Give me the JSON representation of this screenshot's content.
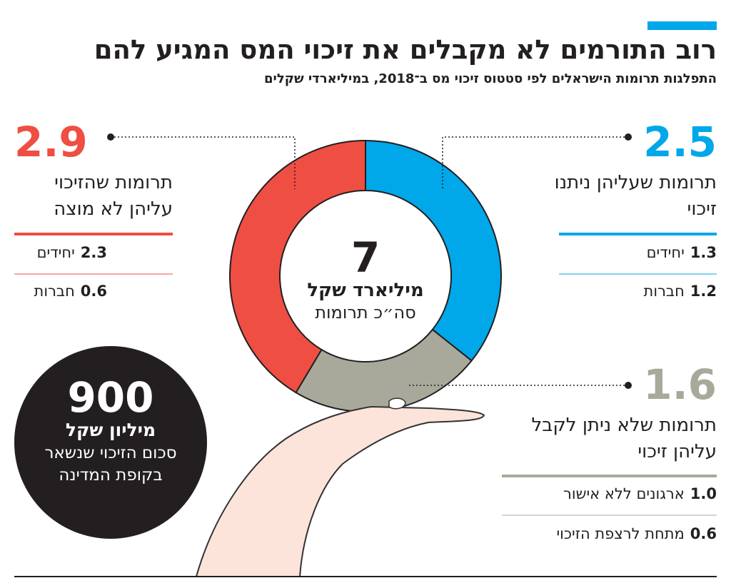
{
  "header": {
    "title": "רוב התורמים לא מקבלים את זיכוי המס המגיע להם",
    "subtitle": "התפלגות תרומות הישראלים לפי סטטוס זיכוי מס ב־2018, במיליארדי שקלים"
  },
  "chart_data": {
    "type": "donut",
    "categories": [
      "תרומות שעליהן ניתנו זיכוי",
      "תרומות שלא ניתן לקבל עליהן זיכוי",
      "תרומות שהזיכוי עליהן לא מוצה"
    ],
    "values": [
      2.5,
      1.6,
      2.9
    ],
    "colors": [
      "#00a7e9",
      "#a9a99b",
      "#ef4e43"
    ],
    "center": {
      "value": 7,
      "unit": "מיליארד שקל",
      "label": "סה״כ תרומות"
    }
  },
  "breakdowns": [
    [
      {
        "amount": "1.3",
        "label": "יחידים"
      },
      {
        "amount": "1.2",
        "label": "חברות"
      }
    ],
    [
      {
        "amount": "1.0",
        "label": "ארגונים ללא אישור"
      },
      {
        "amount": "0.6",
        "label": "מתחת לרצפת הזיכוי"
      }
    ],
    [
      {
        "amount": "2.3",
        "label": "יחידים"
      },
      {
        "amount": "0.6",
        "label": "חברות"
      }
    ]
  ],
  "callout": {
    "value": 900,
    "unit": "מיליון שקל",
    "text": "סכום הזיכוי שנשאר בקופת המדינה"
  }
}
